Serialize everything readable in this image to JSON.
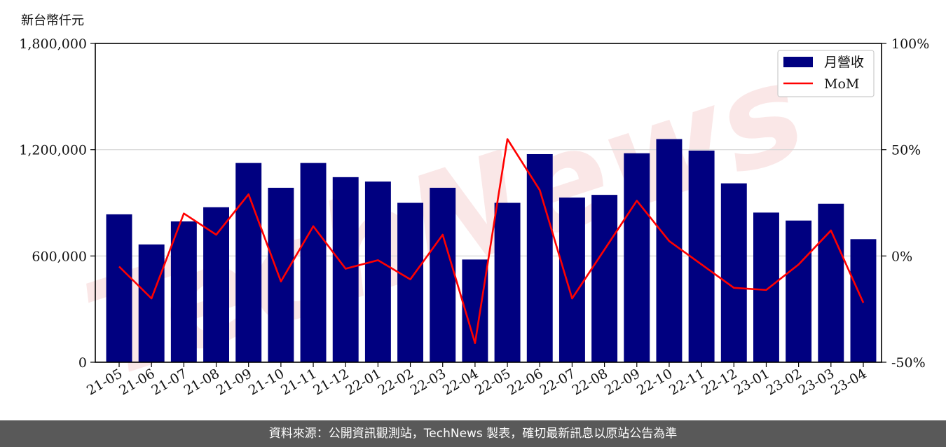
{
  "unit_label": "新台幣仟元",
  "footer_text": "資料來源：公開資訊觀測站，TechNews 製表，確切最新訊息以原站公告為準",
  "watermark_text": "TechNews",
  "colors": {
    "bar": "#000080",
    "line": "#ff0000",
    "grid": "#d3d3d3",
    "watermark": "#f6d3d3"
  },
  "chart_data": {
    "type": "bar",
    "categories": [
      "21-05",
      "21-06",
      "21-07",
      "21-08",
      "21-09",
      "21-10",
      "21-11",
      "21-12",
      "22-01",
      "22-02",
      "22-03",
      "22-04",
      "22-05",
      "22-06",
      "22-07",
      "22-08",
      "22-09",
      "22-10",
      "22-11",
      "22-12",
      "23-01",
      "23-02",
      "23-03",
      "23-04"
    ],
    "series": [
      {
        "name": "月營收",
        "type": "bar",
        "axis": "left",
        "values": [
          835000,
          665000,
          795000,
          875000,
          1125000,
          985000,
          1125000,
          1045000,
          1020000,
          900000,
          985000,
          580000,
          900000,
          1175000,
          930000,
          945000,
          1180000,
          1260000,
          1195000,
          1010000,
          845000,
          800000,
          895000,
          695000
        ]
      },
      {
        "name": "MoM",
        "type": "line",
        "axis": "right",
        "values": [
          -5,
          -20,
          20,
          10,
          29,
          -12,
          14,
          -6,
          -2,
          -11,
          10,
          -41,
          55,
          31,
          -20,
          3,
          26,
          7,
          -4,
          -15,
          -16,
          -4,
          12,
          -22
        ]
      }
    ],
    "y_left": {
      "ylim": [
        0,
        1800000
      ],
      "ticks": [
        0,
        600000,
        1200000,
        1800000
      ],
      "tick_labels": [
        "0",
        "600,000",
        "1,200,000",
        "1,800,000"
      ]
    },
    "y_right": {
      "ylim": [
        -50,
        100
      ],
      "ticks": [
        -50,
        0,
        50,
        100
      ],
      "tick_labels": [
        "-50%",
        "0%",
        "50%",
        "100%"
      ]
    },
    "grid": "horizontal",
    "legend_position": "top-right"
  }
}
